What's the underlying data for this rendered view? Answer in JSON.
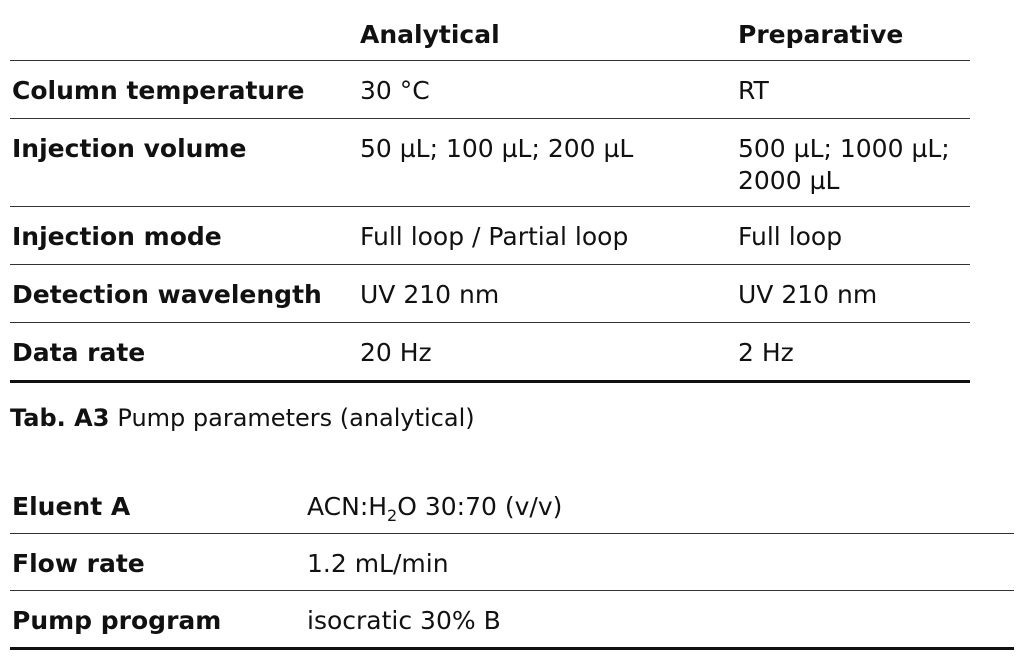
{
  "table1": {
    "headers": {
      "analytical": "Analytical",
      "preparative": "Preparative"
    },
    "rows": [
      {
        "label": "Column temperature",
        "analytical": "30 °C",
        "preparative": "RT"
      },
      {
        "label": "Injection volume",
        "analytical": "50 µL; 100 µL; 200 µL",
        "preparative_line1": "500 µL; 1000 µL;",
        "preparative_line2": "2000 µL"
      },
      {
        "label": "Injection mode",
        "analytical": "Full loop / Partial loop",
        "preparative": "Full loop"
      },
      {
        "label": "Detection wavelength",
        "analytical": "UV 210 nm",
        "preparative": "UV 210 nm"
      },
      {
        "label": "Data rate",
        "analytical": "20 Hz",
        "preparative": "2 Hz"
      }
    ]
  },
  "caption": {
    "label": "Tab. A3",
    "text": "Pump parameters (analytical)"
  },
  "table2": {
    "rows": [
      {
        "label": "Eluent A",
        "value_pre": "ACN:H",
        "value_sub": "2",
        "value_post": "O 30:70 (v/v)"
      },
      {
        "label": "Flow rate",
        "value": "1.2 mL/min"
      },
      {
        "label": "Pump program",
        "value": "isocratic 30% B"
      }
    ]
  }
}
